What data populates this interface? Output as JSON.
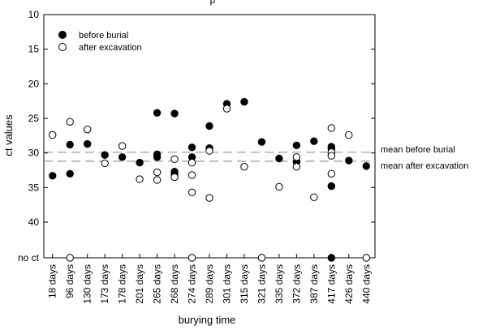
{
  "chart_data": {
    "type": "scatter",
    "title_partial": "p",
    "xlabel": "burying time",
    "ylabel": "ct values",
    "y_reversed": true,
    "ylim": [
      10,
      45
    ],
    "y_ticks": [
      10,
      15,
      20,
      25,
      30,
      35,
      40
    ],
    "y_tick_no_ct_label": "no ct",
    "no_ct_value": "no ct",
    "categories": [
      "18 days",
      "96 days",
      "130 days",
      "173 days",
      "178 days",
      "201 days",
      "265 days",
      "268 days",
      "274 days",
      "289 days",
      "301 days",
      "315 days",
      "321 days",
      "335 days",
      "372 days",
      "387 days",
      "417 days",
      "426 days",
      "440 days"
    ],
    "series": [
      {
        "name": "before burial",
        "marker": "filled",
        "color": "#000000",
        "points": [
          {
            "x": "18 days",
            "y": 33.3
          },
          {
            "x": "96 days",
            "y": 28.8
          },
          {
            "x": "96 days",
            "y": 33.0
          },
          {
            "x": "130 days",
            "y": 28.7
          },
          {
            "x": "173 days",
            "y": 30.3
          },
          {
            "x": "178 days",
            "y": 30.6
          },
          {
            "x": "201 days",
            "y": 31.4
          },
          {
            "x": "265 days",
            "y": 24.2
          },
          {
            "x": "265 days",
            "y": 30.2
          },
          {
            "x": "265 days",
            "y": 30.6
          },
          {
            "x": "268 days",
            "y": 24.3
          },
          {
            "x": "268 days",
            "y": 32.7
          },
          {
            "x": "268 days",
            "y": 33.1
          },
          {
            "x": "274 days",
            "y": 29.2
          },
          {
            "x": "274 days",
            "y": 30.6
          },
          {
            "x": "289 days",
            "y": 26.1
          },
          {
            "x": "289 days",
            "y": 29.3
          },
          {
            "x": "301 days",
            "y": 22.9
          },
          {
            "x": "315 days",
            "y": 22.6
          },
          {
            "x": "321 days",
            "y": 28.4
          },
          {
            "x": "335 days",
            "y": 30.8
          },
          {
            "x": "372 days",
            "y": 28.9
          },
          {
            "x": "372 days",
            "y": 31.3
          },
          {
            "x": "387 days",
            "y": 28.3
          },
          {
            "x": "417 days",
            "y": 29.1
          },
          {
            "x": "417 days",
            "y": 29.4
          },
          {
            "x": "417 days",
            "y": 34.8
          },
          {
            "x": "417 days",
            "y": "no ct"
          },
          {
            "x": "426 days",
            "y": 31.1
          },
          {
            "x": "440 days",
            "y": 31.9
          }
        ]
      },
      {
        "name": "after excavation",
        "marker": "open",
        "color": "#000000",
        "points": [
          {
            "x": "18 days",
            "y": 27.4
          },
          {
            "x": "96 days",
            "y": 25.5
          },
          {
            "x": "96 days",
            "y": "no ct"
          },
          {
            "x": "130 days",
            "y": 26.6
          },
          {
            "x": "173 days",
            "y": 31.5
          },
          {
            "x": "178 days",
            "y": 29.0
          },
          {
            "x": "201 days",
            "y": 33.8
          },
          {
            "x": "265 days",
            "y": 32.8
          },
          {
            "x": "265 days",
            "y": 33.9
          },
          {
            "x": "268 days",
            "y": 30.9
          },
          {
            "x": "268 days",
            "y": 33.5
          },
          {
            "x": "274 days",
            "y": 31.4
          },
          {
            "x": "274 days",
            "y": 33.2
          },
          {
            "x": "274 days",
            "y": 35.7
          },
          {
            "x": "274 days",
            "y": "no ct"
          },
          {
            "x": "289 days",
            "y": 29.7
          },
          {
            "x": "289 days",
            "y": 36.5
          },
          {
            "x": "301 days",
            "y": 23.6
          },
          {
            "x": "315 days",
            "y": 32.0
          },
          {
            "x": "321 days",
            "y": "no ct"
          },
          {
            "x": "335 days",
            "y": 34.9
          },
          {
            "x": "372 days",
            "y": 30.6
          },
          {
            "x": "372 days",
            "y": 32.0
          },
          {
            "x": "387 days",
            "y": 36.4
          },
          {
            "x": "417 days",
            "y": 26.4
          },
          {
            "x": "417 days",
            "y": 29.9
          },
          {
            "x": "417 days",
            "y": 30.4
          },
          {
            "x": "417 days",
            "y": 33.0
          },
          {
            "x": "426 days",
            "y": 27.4
          },
          {
            "x": "440 days",
            "y": "no ct"
          }
        ]
      }
    ],
    "reference_lines": [
      {
        "label": "mean before burial",
        "y": 29.9,
        "style": "dashed",
        "color": "#999999"
      },
      {
        "label": "mean after excavation",
        "y": 31.2,
        "style": "dashed",
        "color": "#999999"
      }
    ],
    "legend_position": "top-left",
    "grid": false
  }
}
